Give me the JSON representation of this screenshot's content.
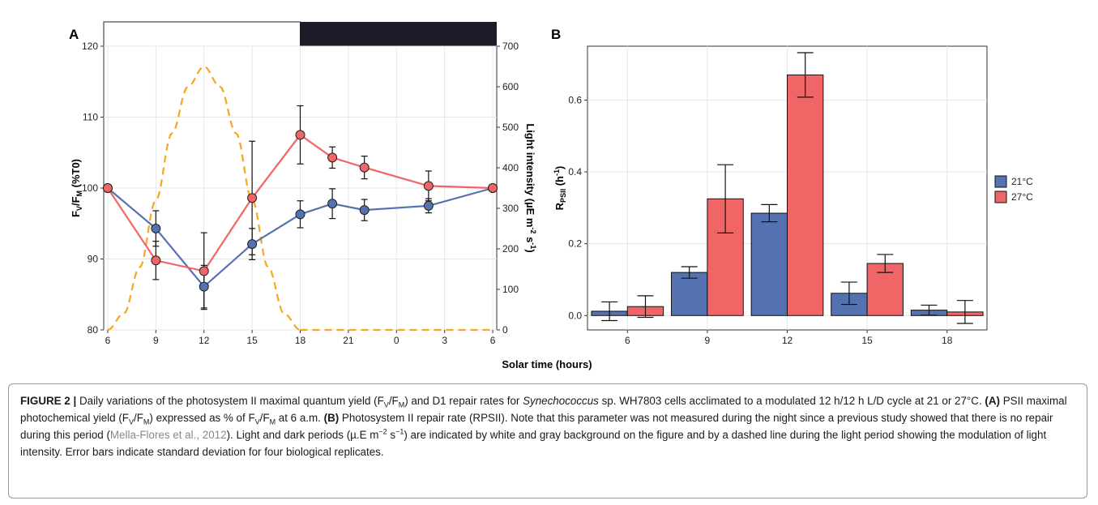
{
  "chart_data": [
    {
      "panel_label": "A",
      "type": "line",
      "x_tick_labels": [
        "6",
        "9",
        "12",
        "15",
        "18",
        "21",
        "0",
        "3",
        "6"
      ],
      "ylabel": "Fv/FM (%T0)",
      "ylim": [
        80,
        120
      ],
      "yticks": [
        80,
        90,
        100,
        110,
        120
      ],
      "y2label": "Light intensity (µE m-2 s-1)",
      "y2lim": [
        0,
        700
      ],
      "y2ticks": [
        0,
        100,
        200,
        300,
        400,
        500,
        600,
        700
      ],
      "light_dark_bar": {
        "light": [
          6,
          18
        ],
        "dark": [
          18,
          30
        ],
        "light_color": "#ffffff",
        "dark_color": "#1c1c28"
      },
      "series": [
        {
          "condition": "21°C",
          "color": "#5572b0",
          "x": [
            6,
            9,
            12,
            15,
            18,
            20,
            22,
            26,
            30
          ],
          "y": [
            100,
            94.3,
            86.1,
            92.1,
            96.3,
            97.8,
            96.9,
            97.5,
            100
          ],
          "err": [
            0,
            2.5,
            3.0,
            2.2,
            1.9,
            2.1,
            1.5,
            1.0,
            0
          ]
        },
        {
          "condition": "27°C",
          "color": "#f06565",
          "x": [
            6,
            9,
            12,
            15,
            18,
            20,
            22,
            26,
            30
          ],
          "y": [
            100,
            89.8,
            88.3,
            98.6,
            107.5,
            104.3,
            102.9,
            100.3,
            100
          ],
          "err": [
            0,
            2.7,
            5.4,
            8.0,
            4.1,
            1.5,
            1.6,
            2.1,
            0
          ]
        }
      ],
      "light_curve": {
        "color": "#f5a623",
        "x": [
          6,
          7,
          8,
          9,
          10,
          11,
          12,
          13,
          14,
          15,
          16,
          17,
          18
        ],
        "y": [
          0,
          40,
          155,
          320,
          485,
          600,
          650,
          600,
          485,
          320,
          155,
          40,
          0
        ],
        "dark_x": [
          18,
          30
        ],
        "dark_y": [
          0,
          0
        ]
      }
    },
    {
      "panel_label": "B",
      "type": "bar",
      "categories": [
        "6",
        "9",
        "12",
        "15",
        "18"
      ],
      "ylabel": "RPSII (h-1)",
      "ylim": [
        0,
        0.75
      ],
      "yticks": [
        "0.0",
        "0.2",
        "0.4",
        "0.6"
      ],
      "series": [
        {
          "name": "21°C",
          "color": "#5572b0",
          "values": [
            0.012,
            0.12,
            0.285,
            0.062,
            0.015
          ],
          "err": [
            0.026,
            0.016,
            0.024,
            0.031,
            0.014
          ]
        },
        {
          "name": "27°C",
          "color": "#f06565",
          "values": [
            0.025,
            0.325,
            0.67,
            0.145,
            0.01
          ],
          "err": [
            0.03,
            0.095,
            0.062,
            0.025,
            0.032
          ]
        }
      ],
      "legend": "right"
    }
  ],
  "shared_xlabel": "Solar time (hours)",
  "caption": {
    "lead": "FIGURE 2 |",
    "p1": " Daily variations of the photosystem II maximal quantum yield (F",
    "p2": "/F",
    "p3": ") and D1 repair rates for ",
    "species": "Synechococcus",
    "p4": " sp. WH7803 cells acclimated to a modulated 12 h/12 h L/D cycle at 21 or 27°C. ",
    "a_label": "(A)",
    "p5": " PSII maximal photochemical yield (F",
    "p6": "/F",
    "p7": ") expressed as % of F",
    "p8": "/F",
    "p9": " at 6 a.m. ",
    "b_label": "(B)",
    "p10": " Photosystem II repair rate (RPSII). Note that this parameter was not measured during the night since a previous study showed that there is no repair during this period (",
    "ref": "Mella-Flores et al., 2012",
    "p11": "). Light and dark periods (µ.E m",
    "exp": "−2",
    "p12": " s",
    "exp2": "−1",
    "p13": ") are indicated by white and gray background on the figure and by a dashed line during the light period showing the modulation of light intensity. Error bars indicate standard deviation for four biological replicates.",
    "sub_v": "V",
    "sub_m": "M"
  },
  "colors": {
    "blue": "#5572b0",
    "red": "#f06565",
    "orange": "#f5a623",
    "grid": "#e6e6e6",
    "dark": "#1c1c28"
  }
}
